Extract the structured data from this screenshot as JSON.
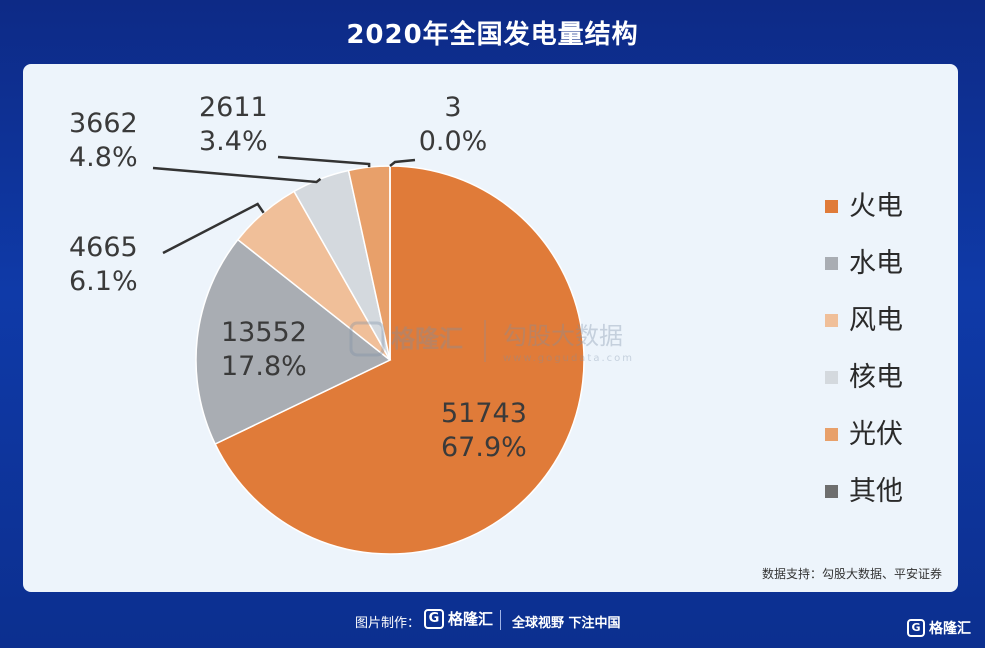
{
  "header": {
    "title": "2020年全国发电量结构"
  },
  "chart_data": {
    "type": "pie",
    "slices": [
      {
        "label": "火电",
        "value": 51743,
        "percent": "67.9%",
        "color": "#e07b39"
      },
      {
        "label": "水电",
        "value": 13552,
        "percent": "17.8%",
        "color": "#a9adb3"
      },
      {
        "label": "风电",
        "value": 4665,
        "percent": "6.1%",
        "color": "#f0bf99"
      },
      {
        "label": "核电",
        "value": 3662,
        "percent": "4.8%",
        "color": "#d4d9de"
      },
      {
        "label": "光伏",
        "value": 2611,
        "percent": "3.4%",
        "color": "#e8a06a"
      },
      {
        "label": "其他",
        "value": 3,
        "percent": "0.0%",
        "color": "#6e6e6e"
      }
    ],
    "legend_position": "right"
  },
  "watermark": {
    "brand": "格隆汇",
    "partner": "勾股大数据",
    "url": "www.gogudata.com"
  },
  "source_note": "数据支持：勾股大数据、平安证券",
  "footer": {
    "made_by": "图片制作：",
    "logo_text": "格隆汇",
    "slogan": "全球视野 下注中国",
    "corner_logo": "格隆汇"
  }
}
